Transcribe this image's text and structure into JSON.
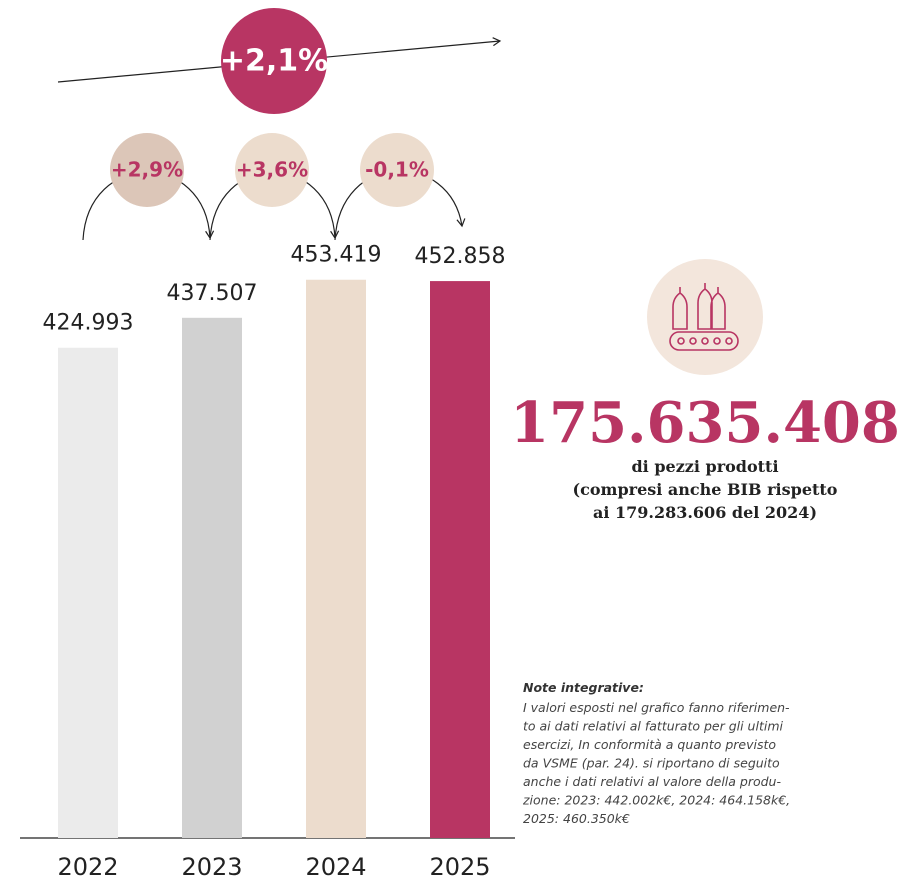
{
  "chart_data": {
    "type": "bar",
    "categories": [
      "2022",
      "2023",
      "2024",
      "2025"
    ],
    "values": [
      424993,
      437507,
      453419,
      452858
    ],
    "value_labels": [
      "424.993",
      "437.507",
      "453.419",
      "452.858"
    ],
    "colors": [
      "#ebebeb",
      "#d1d1d1",
      "#ecdccd",
      "#b83563"
    ],
    "ylim": [
      220000,
      460000
    ],
    "annotations": {
      "total_change": "+2,1%",
      "yearly_changes": [
        "+2,9%",
        "+3,6%",
        "-0,1%"
      ]
    }
  },
  "summary": {
    "value": "175.635.408",
    "lines": [
      "di pezzi prodotti",
      "(compresi anche BIB rispetto",
      "ai 179.283.606 del 2024)"
    ]
  },
  "notes": {
    "title": "Note integrative:",
    "lines": [
      "I valori esposti nel grafico fanno riferimen-",
      "to ai dati relativi al fatturato per gli ultimi",
      "esercizi, In conformità a quanto previsto",
      "da VSME (par. 24). si riportano di seguito",
      "anche i dati relativi al valore della produ-",
      "zione: 2023: 442.002k€, 2024: 464.158k€,",
      "2025: 460.350k€"
    ]
  }
}
